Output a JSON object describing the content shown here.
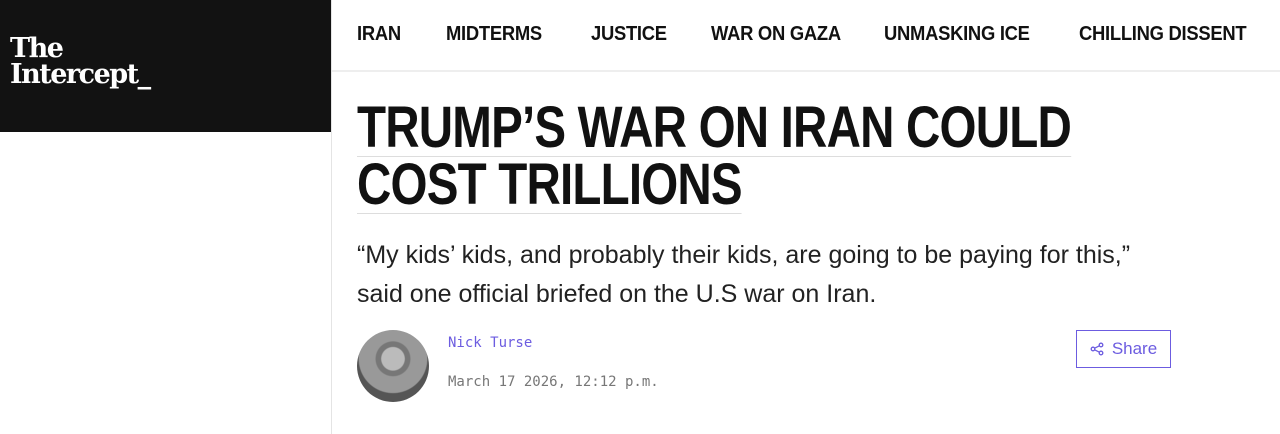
{
  "logo": {
    "line1": "The",
    "line2": "Intercept_"
  },
  "nav": [
    "IRAN",
    "MIDTERMS",
    "JUSTICE",
    "WAR ON GAZA",
    "UNMASKING ICE",
    "CHILLING DISSENT"
  ],
  "article": {
    "headline_line1": "TRUMP’S WAR ON IRAN COULD",
    "headline_line2": "COST TRILLIONS",
    "deck": "“My kids’ kids, and probably their kids, are going to be paying for this,” said one official briefed on the U.S war on Iran.",
    "author": "Nick Turse",
    "date": "March 17 2026, 12:12 p.m.",
    "share_label": "Share"
  },
  "colors": {
    "accent": "#6c5ce0",
    "logo_bg": "#121212"
  }
}
